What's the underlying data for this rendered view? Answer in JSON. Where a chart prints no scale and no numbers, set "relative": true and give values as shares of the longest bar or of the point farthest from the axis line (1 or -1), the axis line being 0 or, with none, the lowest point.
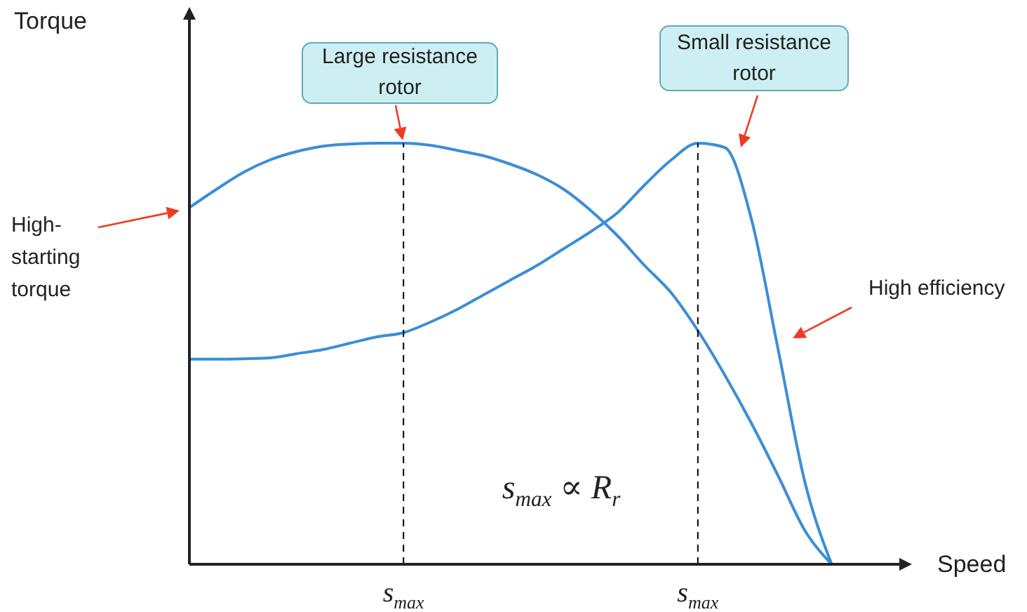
{
  "chart_data": {
    "type": "line",
    "relative": true,
    "xlabel": "Speed",
    "grid": "x",
    "categories": [
      null,
      null,
      null,
      null,
      null,
      null,
      null,
      null,
      "s$_{max}$",
      null,
      null,
      null,
      null,
      null,
      null,
      null,
      null,
      null,
      null,
      "s$_{max}$",
      null,
      null,
      null,
      null,
      null,
      null,
      null,
      null
    ],
    "series": [
      {
        "color": "#3b8ed6",
        "values": [
          0.847,
          0.89,
          0.93,
          0.96,
          0.98,
          0.993,
          0.998,
          1,
          1,
          0.995,
          0.983,
          0.97,
          0.95,
          0.925,
          0.89,
          0.84,
          0.78,
          0.71,
          0.645,
          0.555,
          0.45,
          0.335,
          0.21,
          0.08,
          0,
          null,
          null,
          null
        ]
      },
      {
        "color": "#3b8ed6",
        "values": [
          0.487,
          0.487,
          0.488,
          0.49,
          0.5,
          0.51,
          0.525,
          0.54,
          0.55,
          0.575,
          0.605,
          0.64,
          0.675,
          0.71,
          0.75,
          0.79,
          0.835,
          0.9,
          0.96,
          1,
          0.99,
          0.82,
          0.51,
          0.195,
          0,
          null,
          null,
          null
        ]
      }
    ],
    "annotations": [
      "Large resistance rotor",
      "Small resistance rotor",
      "High-starting torque",
      "High efficiency",
      "s$_{max}$ ∝ R$_{r}$",
      "Torque"
    ]
  }
}
